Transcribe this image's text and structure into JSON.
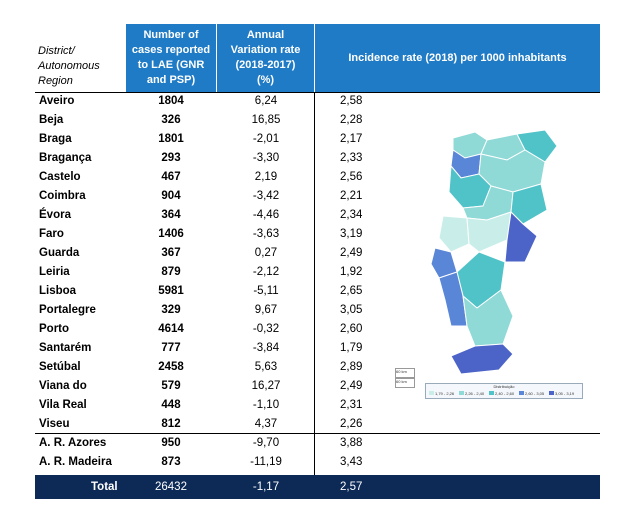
{
  "header": {
    "col_region": [
      "District/",
      "Autonomous",
      "Region"
    ],
    "col_cases": [
      "Number of",
      "cases reported",
      "to LAE (GNR",
      "and PSP)"
    ],
    "col_var": [
      "Annual",
      "Variation rate",
      "(2018-2017)",
      "(%)"
    ],
    "col_inc": "Incidence rate (2018) per 1000 inhabitants"
  },
  "rows": [
    {
      "name": "Aveiro",
      "cases": "1804",
      "var": "6,24",
      "inc": "2,58"
    },
    {
      "name": "Beja",
      "cases": "326",
      "var": "16,85",
      "inc": "2,28"
    },
    {
      "name": "Braga",
      "cases": "1801",
      "var": "-2,01",
      "inc": "2,17"
    },
    {
      "name": "Bragança",
      "cases": "293",
      "var": "-3,30",
      "inc": "2,33"
    },
    {
      "name": "Castelo",
      "cases": "467",
      "var": "2,19",
      "inc": "2,56"
    },
    {
      "name": "Coimbra",
      "cases": "904",
      "var": "-3,42",
      "inc": "2,21"
    },
    {
      "name": "Évora",
      "cases": "364",
      "var": "-4,46",
      "inc": "2,34"
    },
    {
      "name": "Faro",
      "cases": "1406",
      "var": "-3,63",
      "inc": "3,19"
    },
    {
      "name": "Guarda",
      "cases": "367",
      "var": "0,27",
      "inc": "2,49"
    },
    {
      "name": "Leiria",
      "cases": "879",
      "var": "-2,12",
      "inc": "1,92"
    },
    {
      "name": "Lisboa",
      "cases": "5981",
      "var": "-5,11",
      "inc": "2,65"
    },
    {
      "name": "Portalegre",
      "cases": "329",
      "var": "9,67",
      "inc": "3,05"
    },
    {
      "name": "Porto",
      "cases": "4614",
      "var": "-0,32",
      "inc": "2,60"
    },
    {
      "name": "Santarém",
      "cases": "777",
      "var": "-3,84",
      "inc": "1,79"
    },
    {
      "name": "Setúbal",
      "cases": "2458",
      "var": "5,63",
      "inc": "2,89"
    },
    {
      "name": "Viana do",
      "cases": "579",
      "var": "16,27",
      "inc": "2,49"
    },
    {
      "name": "Vila Real",
      "cases": "448",
      "var": "-1,10",
      "inc": "2,31"
    },
    {
      "name": "Viseu",
      "cases": "812",
      "var": "4,37",
      "inc": "2,26"
    }
  ],
  "regions": [
    {
      "name": "A. R. Azores",
      "cases": "950",
      "var": "-9,70",
      "inc": "3,88"
    },
    {
      "name": "A. R. Madeira",
      "cases": "873",
      "var": "-11,19",
      "inc": "3,43"
    }
  ],
  "total": {
    "label": "Total",
    "cases": "26432",
    "var": "-1,17",
    "inc": "2,57"
  },
  "map": {
    "legend_title": "Distribuição",
    "legend_items": [
      "1,79 - 2,26",
      "2,26 - 2,40",
      "2,40 - 2,60",
      "2,60 - 3,05",
      "3,05 - 3,19"
    ],
    "legend_colors": [
      "#c9eeea",
      "#8fd9d6",
      "#4fc3c8",
      "#5a86d8",
      "#4c63c8"
    ],
    "scale_labels": [
      "60 km",
      "60 km"
    ]
  },
  "colors": {
    "header_blue": "#1f7bc6",
    "total_navy": "#0d2a57"
  }
}
